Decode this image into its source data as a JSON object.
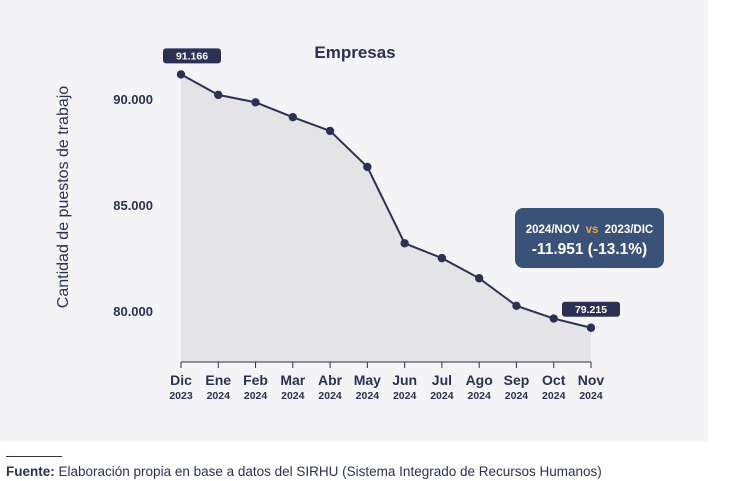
{
  "chart_data": {
    "type": "area",
    "title": "Empresas",
    "ylabel": "Cantidad de puestos de trabajo",
    "xlabel": "",
    "x": [
      {
        "month": "Dic",
        "year": "2023"
      },
      {
        "month": "Ene",
        "year": "2024"
      },
      {
        "month": "Feb",
        "year": "2024"
      },
      {
        "month": "Mar",
        "year": "2024"
      },
      {
        "month": "Abr",
        "year": "2024"
      },
      {
        "month": "May",
        "year": "2024"
      },
      {
        "month": "Jun",
        "year": "2024"
      },
      {
        "month": "Jul",
        "year": "2024"
      },
      {
        "month": "Ago",
        "year": "2024"
      },
      {
        "month": "Sep",
        "year": "2024"
      },
      {
        "month": "Oct",
        "year": "2024"
      },
      {
        "month": "Nov",
        "year": "2024"
      }
    ],
    "values": [
      91166,
      90200,
      89850,
      89150,
      88500,
      86800,
      83200,
      82500,
      81550,
      80250,
      79650,
      79215
    ],
    "ylim": [
      77600,
      92600
    ],
    "yticks": [
      80000,
      85000,
      90000
    ],
    "ytick_labels": [
      "80.000",
      "85.000",
      "90.000"
    ],
    "point_labels": [
      {
        "index": 0,
        "text": "91.166"
      },
      {
        "index": 11,
        "text": "79.215"
      }
    ],
    "annotation": {
      "line1_left": "2024/NOV",
      "line1_vs": "vs",
      "line1_right": "2023/DIC",
      "line2": "-11.951 (-13.1%)"
    },
    "grid": false,
    "legend": "none",
    "colors": {
      "line": "#2b3152",
      "fill": "#e4e4e6",
      "label_bg": "#2b3152",
      "annotation_bg": "#3b5278",
      "annotation_vs": "#f2a73b"
    }
  },
  "footer": {
    "source_label": "Fuente:",
    "source_text": " Elaboración propia en base a datos del SIRHU (Sistema Integrado de Recursos Humanos)"
  }
}
